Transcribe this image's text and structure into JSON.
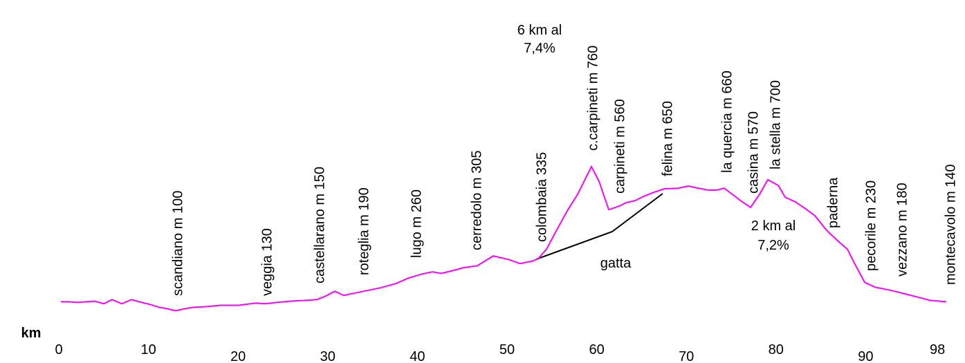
{
  "chart_data": {
    "type": "line",
    "x_label": "km",
    "x": [
      0.23,
      1.16,
      2.08,
      3.09,
      4.01,
      5.02,
      5.94,
      7.02,
      8.1,
      9.26,
      10.26,
      11.19,
      12.11,
      13.04,
      14.04,
      15.05,
      16.59,
      17.98,
      20.06,
      21.99,
      22.99,
      24.31,
      25.85,
      27.39,
      28.78,
      29.71,
      30.79,
      31.79,
      32.79,
      34.34,
      35.88,
      37.58,
      38.97,
      40.51,
      41.67,
      42.67,
      43.98,
      45.14,
      46.68,
      48.46,
      50.15,
      51.47,
      52.85,
      53.47,
      54.4,
      55.56,
      56.71,
      57.87,
      59.41,
      60.26,
      61.34,
      62.5,
      63.27,
      64.27,
      65.2,
      66.36,
      67.52,
      69.06,
      70.22,
      71.37,
      72.53,
      73.3,
      74.23,
      75.23,
      76.16,
      77.16,
      78.16,
      79.09,
      80.25,
      81.02,
      82.18,
      83.33,
      84.34,
      85.65,
      86.81,
      87.96,
      88.73,
      89.89,
      91.05,
      92.98,
      94.52,
      96.06,
      97.22,
      98.99
    ],
    "series": [
      {
        "color": "#ff00ff",
        "values": [
          138,
          138,
          135,
          138,
          141,
          129,
          148,
          129,
          148,
          135,
          125,
          113,
          106,
          97,
          106,
          113,
          116,
          122,
          122,
          132,
          129,
          135,
          141,
          144,
          148,
          163,
          186,
          167,
          176,
          189,
          202,
          221,
          246,
          265,
          275,
          268,
          281,
          294,
          303,
          348,
          332,
          313,
          325,
          335,
          379,
          468,
          554,
          630,
          757,
          690,
          560,
          576,
          592,
          601,
          620,
          639,
          655,
          658,
          668,
          658,
          649,
          649,
          658,
          627,
          598,
          570,
          630,
          697,
          671,
          617,
          595,
          563,
          532,
          465,
          420,
          379,
          316,
          227,
          205,
          189,
          173,
          157,
          144,
          138
        ]
      }
    ],
    "xlim": [
      0,
      100
    ],
    "ylim": [
      0,
      1520
    ],
    "xticks": [
      0,
      10,
      20,
      30,
      40,
      50,
      60,
      70,
      80,
      90,
      98
    ],
    "place_labels": [
      "scandiano  m 100",
      "veggia  130",
      "castellarano m 150",
      "roteglia m 190",
      "lugo m 260",
      "cerredolo m 305",
      "colombaia  335",
      "c.carpineti m 760",
      "carpineti m 560",
      "felina m 650",
      "la quercia m 660",
      "casina m 570",
      "la stella m 700",
      "paderna",
      "pecorile m 230",
      "vezzano m 180",
      "montecavolo  m 140"
    ],
    "annotations": [
      "6 km al",
      "7,4%",
      "2 km al",
      "7,2%",
      "gatta"
    ]
  }
}
